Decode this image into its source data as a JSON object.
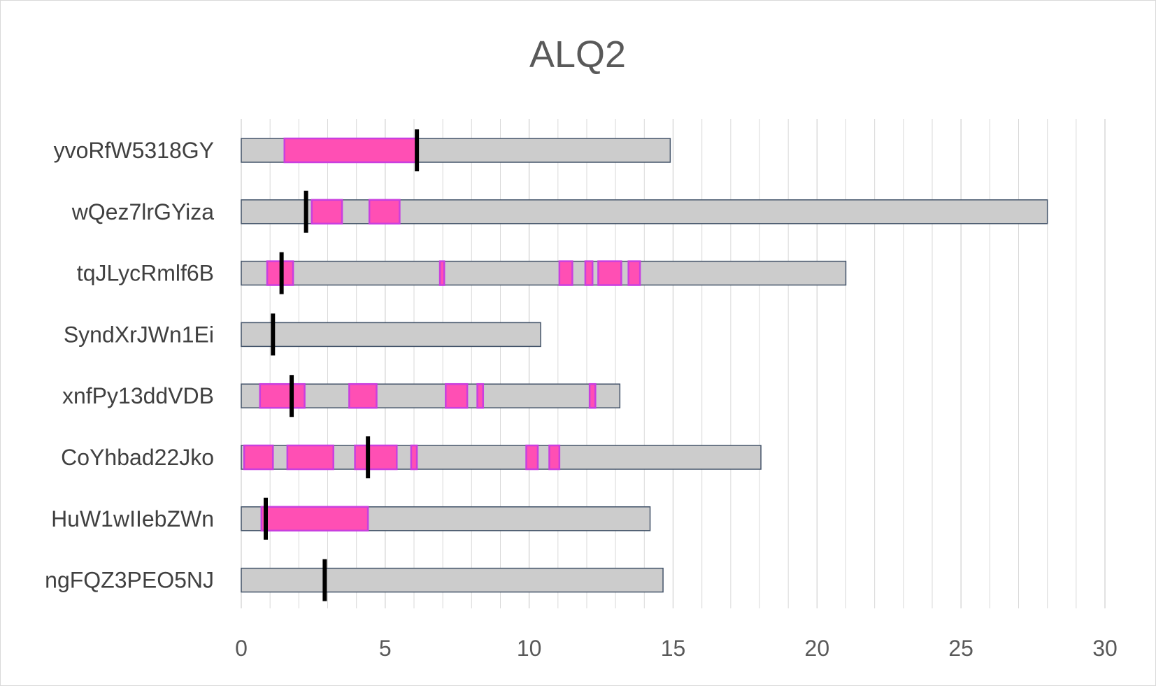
{
  "chart_data": {
    "type": "bar",
    "title": "ALQ2",
    "xlabel": "",
    "ylabel": "",
    "xlim": [
      0,
      30
    ],
    "xticks": [
      0,
      5,
      10,
      15,
      20,
      25,
      30
    ],
    "grid": true,
    "legend": "none",
    "colors": {
      "bar": "#cccccc",
      "bar_border": "#44546a",
      "segment": "#ff4fb4",
      "segment_border": "#c93fdf",
      "marker": "#000000",
      "grid": "#d9d9d9"
    },
    "categories": [
      "yvoRfW5318GY",
      "wQez7lrGYiza",
      "tqJLycRmlf6B",
      "SyndXrJWn1Ei",
      "xnfPy13ddVDB",
      "CoYhbad22Jko",
      "HuW1wIIebZWn",
      "ngFQZ3PEO5NJ"
    ],
    "rows": [
      {
        "category": "yvoRfW5318GY",
        "length": 14.9,
        "marker": 6.1,
        "segments": [
          [
            1.5,
            6.1
          ]
        ]
      },
      {
        "category": "wQez7lrGYiza",
        "length": 28.0,
        "marker": 2.25,
        "segments": [
          [
            2.45,
            3.5
          ],
          [
            4.45,
            5.5
          ]
        ]
      },
      {
        "category": "tqJLycRmlf6B",
        "length": 21.0,
        "marker": 1.4,
        "segments": [
          [
            0.9,
            1.8
          ],
          [
            6.9,
            7.05
          ],
          [
            11.05,
            11.5
          ],
          [
            11.95,
            12.2
          ],
          [
            12.4,
            13.2
          ],
          [
            13.45,
            13.85
          ]
        ]
      },
      {
        "category": "SyndXrJWn1Ei",
        "length": 10.4,
        "marker": 1.1,
        "segments": []
      },
      {
        "category": "xnfPy13ddVDB",
        "length": 13.15,
        "marker": 1.75,
        "segments": [
          [
            0.65,
            2.2
          ],
          [
            3.75,
            4.7
          ],
          [
            7.1,
            7.85
          ],
          [
            8.2,
            8.4
          ],
          [
            12.1,
            12.3
          ]
        ]
      },
      {
        "category": "CoYhbad22Jko",
        "length": 18.05,
        "marker": 4.4,
        "segments": [
          [
            0.1,
            1.1
          ],
          [
            1.6,
            3.2
          ],
          [
            3.95,
            5.4
          ],
          [
            5.9,
            6.1
          ],
          [
            9.9,
            10.3
          ],
          [
            10.7,
            11.05
          ]
        ]
      },
      {
        "category": "HuW1wIIebZWn",
        "length": 14.2,
        "marker": 0.85,
        "segments": [
          [
            0.7,
            4.4
          ]
        ]
      },
      {
        "category": "ngFQZ3PEO5NJ",
        "length": 14.65,
        "marker": 2.9,
        "segments": []
      }
    ]
  }
}
